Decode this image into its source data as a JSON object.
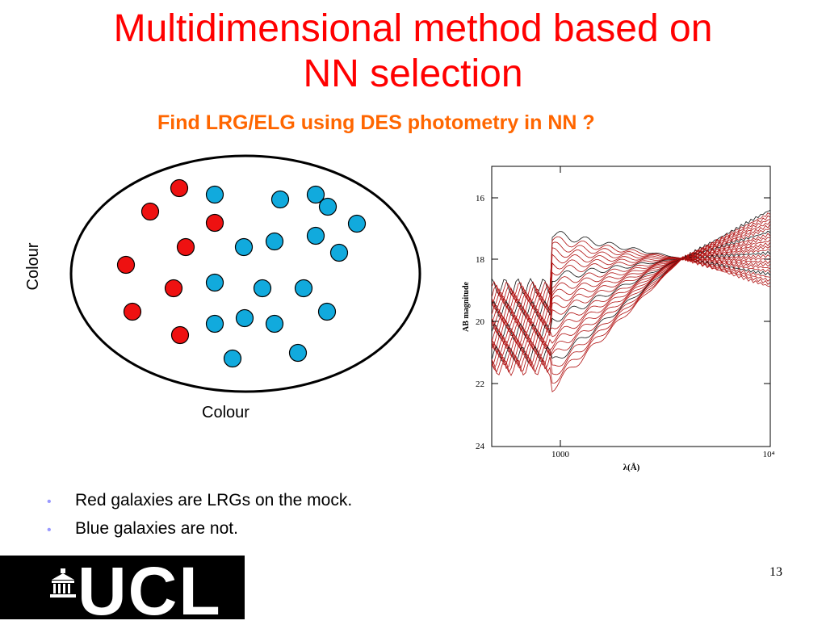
{
  "slide": {
    "title_line1": "Multidimensional method based on",
    "title_line2": "NN selection",
    "subtitle": "Find LRG/ELG using DES photometry in NN ?",
    "page_number": "13"
  },
  "diagram": {
    "x_axis_label": "Colour",
    "y_axis_label": "Colour",
    "colors": {
      "red": "#ee1111",
      "blue": "#11aadd"
    }
  },
  "spectra_plot": {
    "ylabel": "AB magnitude",
    "xlabel": "λ(Å)",
    "yticks": [
      "16",
      "18",
      "20",
      "22",
      "24"
    ],
    "xticks": [
      "1000",
      "10⁴"
    ]
  },
  "bullets": [
    "Red galaxies are LRGs on the mock.",
    "Blue galaxies are not."
  ],
  "logo": {
    "text": "UCL"
  }
}
